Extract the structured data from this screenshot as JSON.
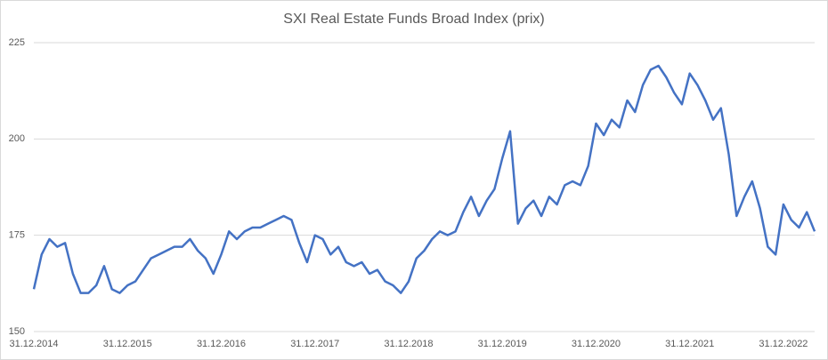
{
  "chart_data": {
    "type": "line",
    "title": "SXI Real Estate Funds Broad Index (prix)",
    "categories": [
      "31.12.2014",
      null,
      null,
      null,
      null,
      null,
      null,
      null,
      null,
      null,
      null,
      null,
      "31.12.2015",
      null,
      null,
      null,
      null,
      null,
      null,
      null,
      null,
      null,
      null,
      null,
      "31.12.2016",
      null,
      null,
      null,
      null,
      null,
      null,
      null,
      null,
      null,
      null,
      null,
      "31.12.2017",
      null,
      null,
      null,
      null,
      null,
      null,
      null,
      null,
      null,
      null,
      null,
      "31.12.2018",
      null,
      null,
      null,
      null,
      null,
      null,
      null,
      null,
      null,
      null,
      null,
      "31.12.2019",
      null,
      null,
      null,
      null,
      null,
      null,
      null,
      null,
      null,
      null,
      null,
      "31.12.2020",
      null,
      null,
      null,
      null,
      null,
      null,
      null,
      null,
      null,
      null,
      null,
      "31.12.2021",
      null,
      null,
      null,
      null,
      null,
      null,
      null,
      null,
      null,
      null,
      null,
      "31.12.2022",
      null,
      null,
      null,
      null
    ],
    "values": [
      161,
      170,
      174,
      172,
      173,
      165,
      160,
      160,
      162,
      167,
      161,
      160,
      162,
      163,
      166,
      169,
      170,
      171,
      172,
      172,
      174,
      171,
      169,
      165,
      170,
      176,
      174,
      176,
      177,
      177,
      178,
      179,
      180,
      179,
      173,
      168,
      175,
      174,
      170,
      172,
      168,
      167,
      168,
      165,
      166,
      163,
      162,
      160,
      163,
      169,
      171,
      174,
      176,
      175,
      176,
      181,
      185,
      180,
      184,
      187,
      195,
      202,
      178,
      182,
      184,
      180,
      185,
      183,
      188,
      189,
      188,
      193,
      204,
      201,
      205,
      203,
      210,
      207,
      214,
      218,
      219,
      216,
      212,
      209,
      217,
      214,
      210,
      205,
      208,
      196,
      180,
      185,
      189,
      182,
      172,
      170,
      183,
      179,
      177,
      181,
      176
    ],
    "color": "#4472c4",
    "ylim": [
      150,
      225
    ],
    "yticks": [
      150,
      175,
      200,
      225
    ],
    "grid": true
  }
}
